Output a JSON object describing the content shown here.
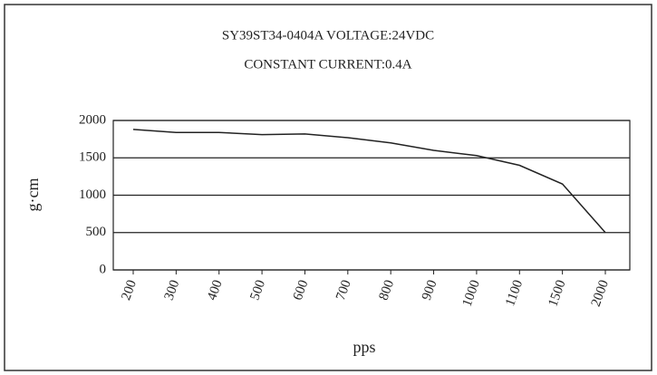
{
  "chart_data": {
    "type": "line",
    "title": "SY39ST34-0404A   VOLTAGE:24VDC",
    "subtitle": "CONSTANT CURRENT:0.4A",
    "y_label": "g·cm",
    "x_label": "pps",
    "categories": [
      "200",
      "300",
      "400",
      "500",
      "600",
      "700",
      "800",
      "900",
      "1000",
      "1100",
      "1500",
      "2000"
    ],
    "values": [
      1880,
      1840,
      1840,
      1810,
      1820,
      1770,
      1700,
      1600,
      1530,
      1400,
      1150,
      500
    ],
    "color": "#222222",
    "ylim": [
      0,
      2000
    ],
    "yticks": [
      0,
      500,
      1000,
      1500,
      2000
    ],
    "grid": true
  }
}
